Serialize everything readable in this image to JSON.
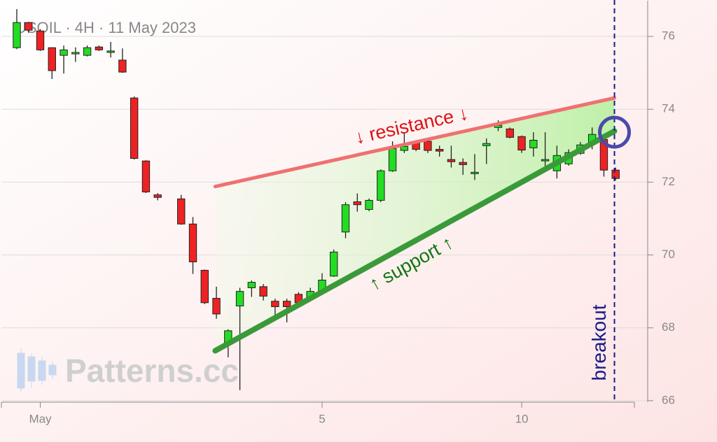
{
  "chart_data": {
    "type": "candlestick",
    "title": "USOIL · 4H · 11 May 2023",
    "watermark": "Patterns.cc",
    "x": [
      0,
      1,
      2,
      3,
      4,
      5,
      6,
      7,
      8,
      9,
      10,
      11,
      12,
      14,
      15,
      16,
      17,
      18,
      19,
      20,
      21,
      22,
      23,
      24,
      25,
      26,
      27,
      28,
      29,
      30,
      31,
      32,
      33,
      34,
      35,
      36,
      37,
      38,
      39,
      40,
      41,
      42,
      43,
      44,
      45,
      46,
      47,
      48,
      49,
      50,
      51
    ],
    "open": [
      75.69,
      76.38,
      76.15,
      75.69,
      75.48,
      75.52,
      75.48,
      75.71,
      75.56,
      75.35,
      74.31,
      72.58,
      71.65,
      71.54,
      70.85,
      69.58,
      68.81,
      67.56,
      68.6,
      69.1,
      69.13,
      68.73,
      68.73,
      68.92,
      68.79,
      68.98,
      69.42,
      70.63,
      71.46,
      71.25,
      71.5,
      72.31,
      72.87,
      73.08,
      73.12,
      72.9,
      72.62,
      72.54,
      72.25,
      73.0,
      73.5,
      73.46,
      73.25,
      72.94,
      72.6,
      72.31,
      72.5,
      72.79,
      73.04,
      73.17,
      72.33
    ],
    "high": [
      76.75,
      76.4,
      76.2,
      75.7,
      75.75,
      75.7,
      75.75,
      75.75,
      75.85,
      75.67,
      74.35,
      72.6,
      71.7,
      71.65,
      71.04,
      69.6,
      69.13,
      67.96,
      69.1,
      69.3,
      69.2,
      68.8,
      68.8,
      68.98,
      69.1,
      69.5,
      70.15,
      71.45,
      71.69,
      71.55,
      72.35,
      73.12,
      73.37,
      73.15,
      73.15,
      73.0,
      73.0,
      72.65,
      72.77,
      73.2,
      73.7,
      73.5,
      73.28,
      73.37,
      73.37,
      73.0,
      72.9,
      73.1,
      73.5,
      73.2,
      72.4
    ],
    "low": [
      75.65,
      76.1,
      75.6,
      74.83,
      74.98,
      75.3,
      75.45,
      75.6,
      75.42,
      75.0,
      72.62,
      71.7,
      71.5,
      70.83,
      69.48,
      68.65,
      68.25,
      67.19,
      66.29,
      68.85,
      68.75,
      68.19,
      68.15,
      68.65,
      68.75,
      68.95,
      69.4,
      70.46,
      71.19,
      71.2,
      71.45,
      72.28,
      72.8,
      72.85,
      72.8,
      72.7,
      72.4,
      72.2,
      72.06,
      72.5,
      73.4,
      73.2,
      72.8,
      72.7,
      72.4,
      72.1,
      72.45,
      72.75,
      72.9,
      72.15,
      72.05
    ],
    "close": [
      76.38,
      76.17,
      75.63,
      75.06,
      75.63,
      75.56,
      75.69,
      75.63,
      75.6,
      75.02,
      72.65,
      71.73,
      71.58,
      70.85,
      69.81,
      68.69,
      68.38,
      67.92,
      69.0,
      69.25,
      68.87,
      68.58,
      68.58,
      68.69,
      69.0,
      69.31,
      70.08,
      71.38,
      71.38,
      71.5,
      72.31,
      72.92,
      72.98,
      72.9,
      72.87,
      72.85,
      72.56,
      72.48,
      72.27,
      73.06,
      73.56,
      73.23,
      72.88,
      73.15,
      72.62,
      72.73,
      72.81,
      73.02,
      73.31,
      72.33,
      72.1
    ],
    "up_color": "#22dd22",
    "down_color": "#ee2222",
    "xlim": [
      -1.31,
      53.73
    ],
    "xticks": [
      {
        "value": 2,
        "label": "May"
      },
      {
        "value": 26,
        "label": "5"
      },
      {
        "value": 43,
        "label": "10"
      }
    ],
    "ylim": [
      65.96,
      76.98
    ],
    "yticks": [
      66,
      68,
      70,
      72,
      74,
      76
    ],
    "grid": true,
    "trendlines": [
      {
        "label": "↓ resistance ↓",
        "color": "#f07070",
        "x": [
          16.9,
          50.9
        ],
        "y": [
          71.88,
          74.31
        ]
      },
      {
        "label": "↑ support ↑",
        "color": "#3a9a3a",
        "x": [
          16.9,
          50.9
        ],
        "y": [
          67.37,
          73.4
        ]
      }
    ],
    "breakout": {
      "label": "breakout",
      "x": 50.9,
      "color": "#1a1a8a"
    },
    "highlight": {
      "x": 50.9,
      "y": 73.37,
      "color": "#4a4aaa"
    }
  }
}
